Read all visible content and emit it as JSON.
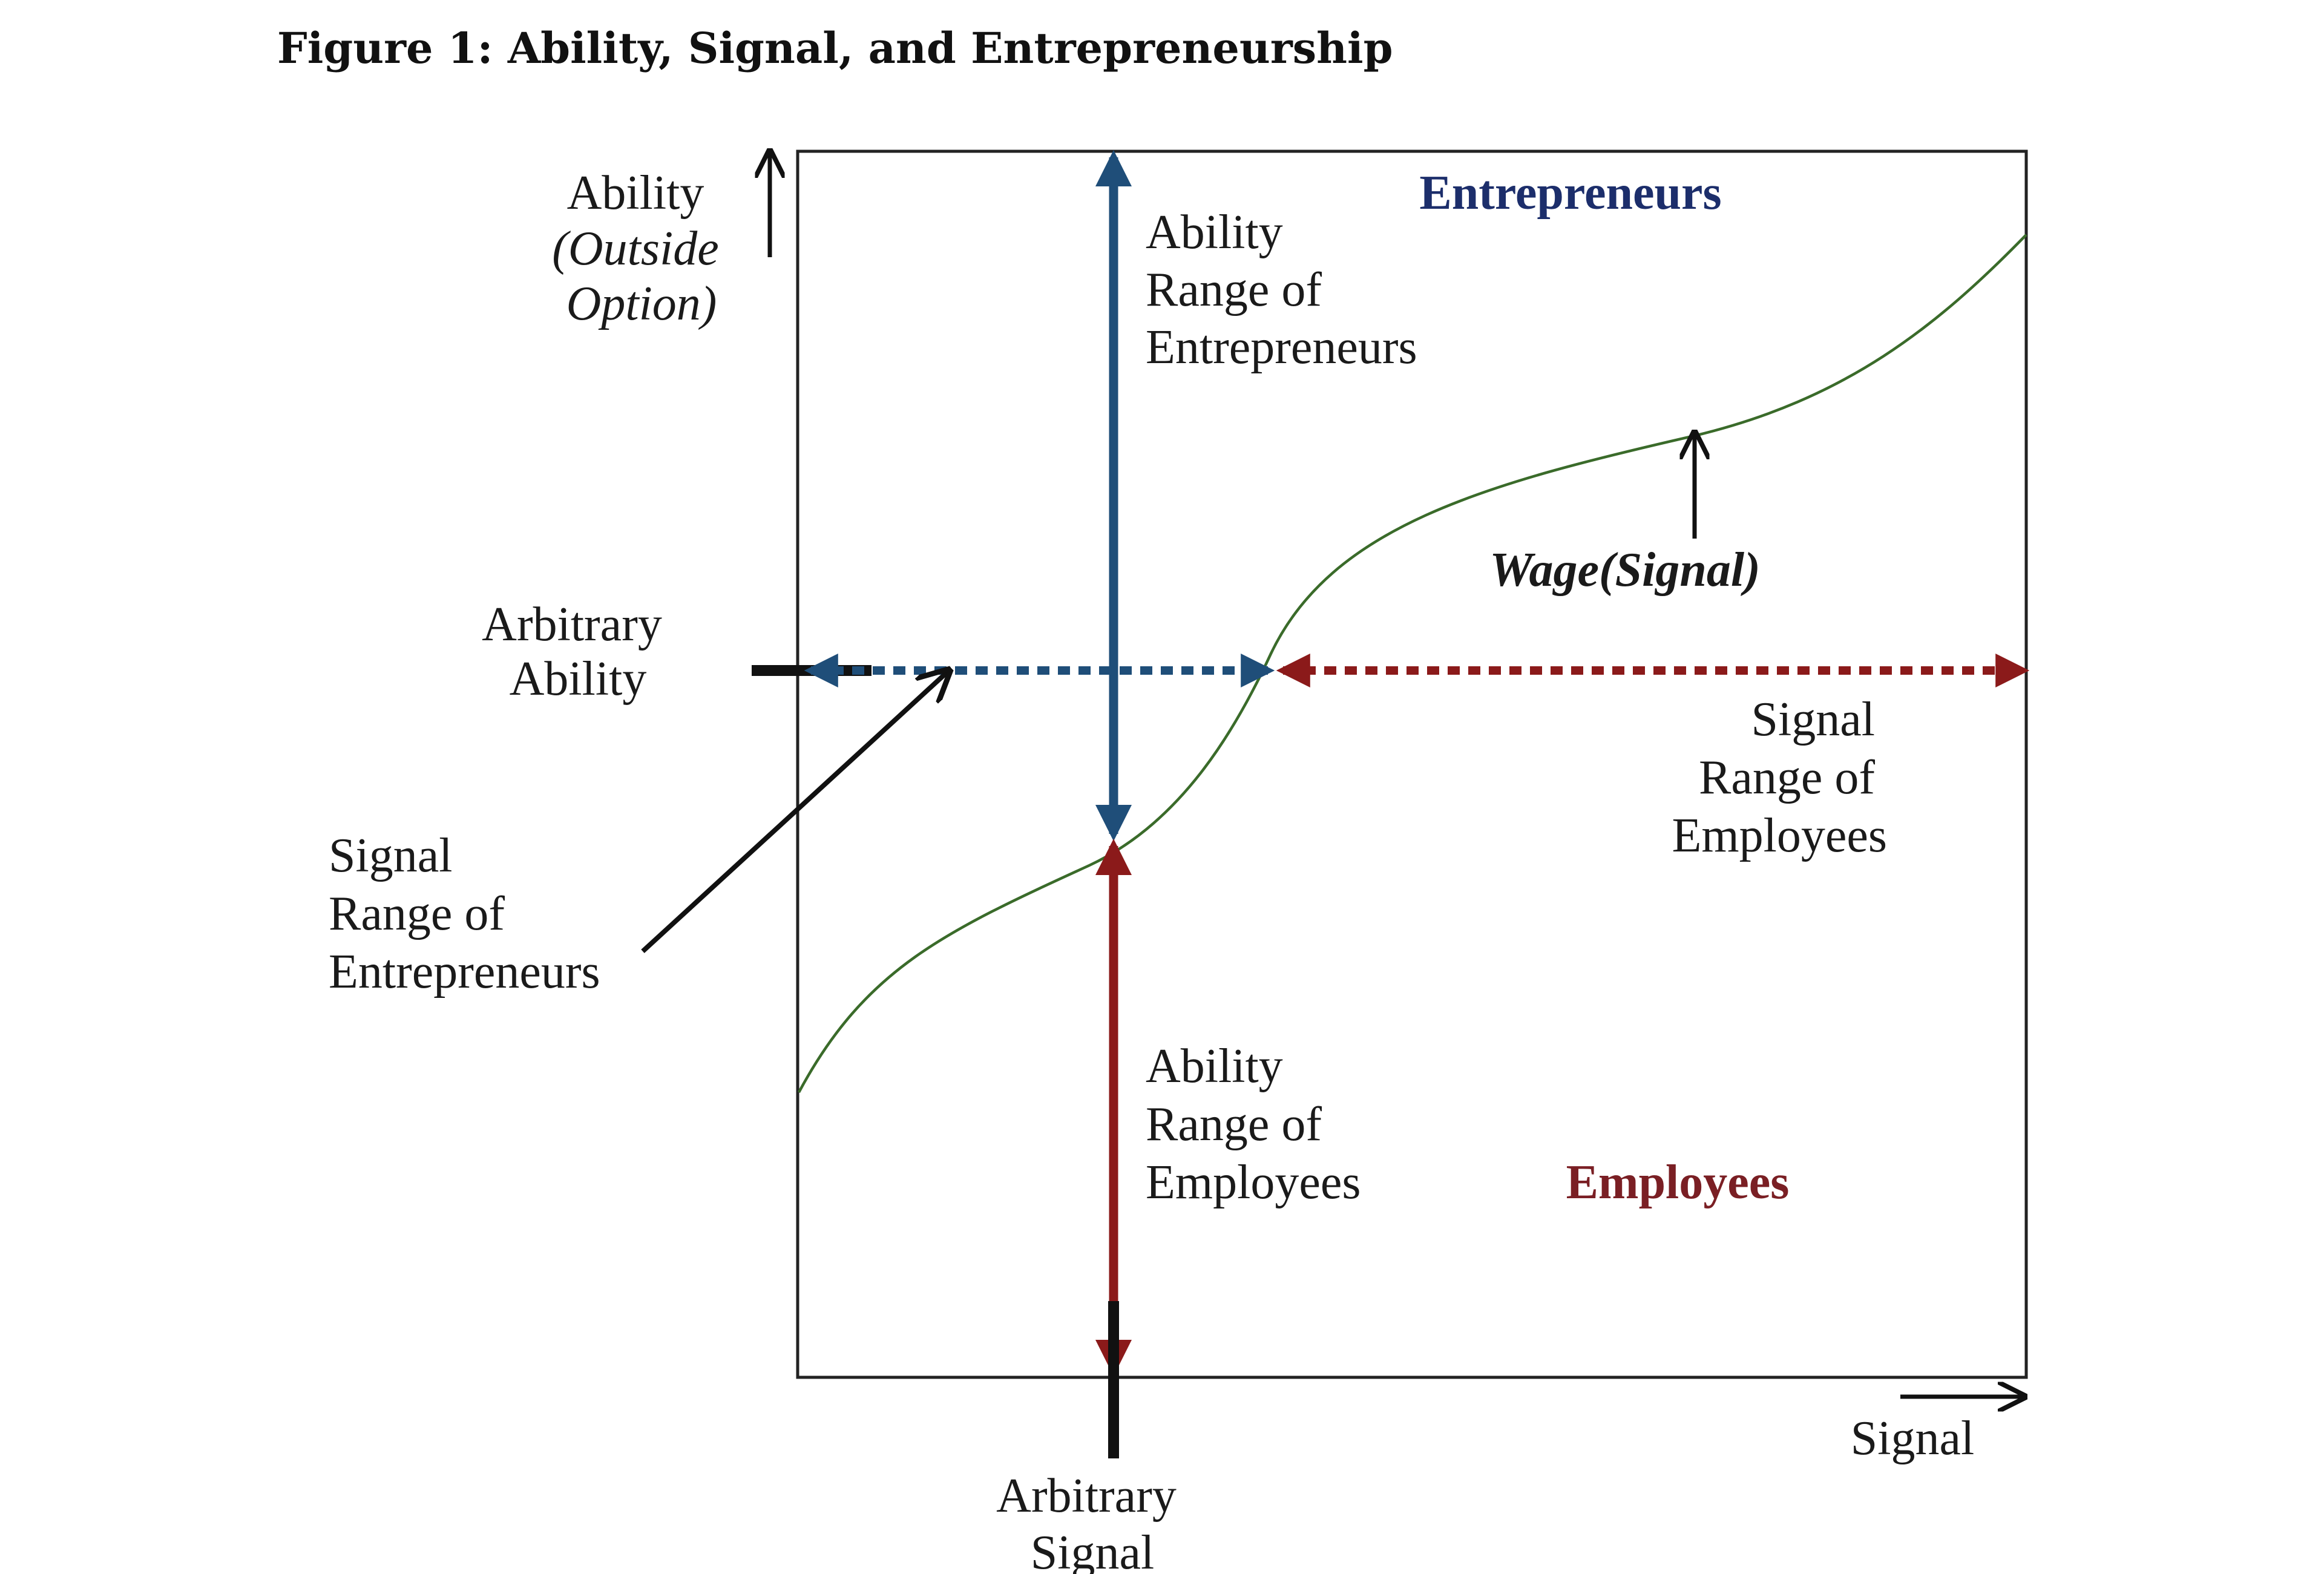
{
  "title": "Figure 1: Ability, Signal, and Entrepreneurship",
  "axes": {
    "y_label": [
      "Ability",
      "(Outside",
      "Option)"
    ],
    "x_label": "Signal"
  },
  "regions": {
    "entrepreneurs": "Entrepreneurs",
    "employees": "Employees"
  },
  "curve_label": "Wage(Signal)",
  "annotations": {
    "ability_range_entrepreneurs": [
      "Ability",
      "Range of",
      "Entrepreneurs"
    ],
    "ability_range_employees": [
      "Ability",
      "Range of",
      "Employees"
    ],
    "signal_range_employees": [
      "Signal",
      "Range of",
      "Employees"
    ],
    "signal_range_entrepreneurs": [
      "Signal",
      "Range of",
      "Entrepreneurs"
    ],
    "arbitrary_ability": [
      "Arbitrary",
      "Ability"
    ],
    "arbitrary_signal": [
      "Arbitrary",
      "Signal"
    ]
  },
  "colors": {
    "entrepreneurs": "#1f4e79",
    "entrepreneurs_label": "#1c2e6b",
    "employees": "#8b1a1a",
    "employees_label": "#7a1f24",
    "curve": "#3a6b2a",
    "frame": "#222222"
  }
}
